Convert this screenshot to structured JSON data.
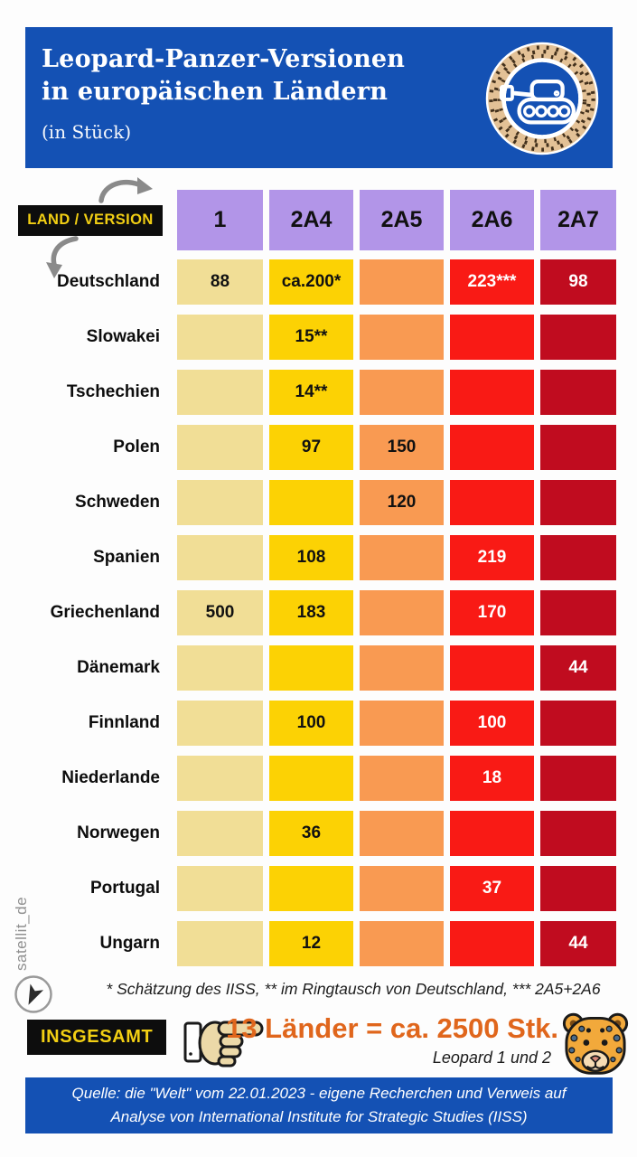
{
  "header": {
    "title_line1": "Leopard-Panzer-Versionen",
    "title_line2": "in europäischen Ländern",
    "subtitle": "(in Stück)",
    "bg_color": "#1451b4",
    "logo_icon": "leopard-tank-badge-icon"
  },
  "chart_data": {
    "type": "heatmap",
    "title": "Leopard-Panzer-Versionen in europäischen Ländern",
    "unit": "in Stück",
    "corner_label": "LAND / VERSION",
    "columns": [
      "1",
      "2A4",
      "2A5",
      "2A6",
      "2A7"
    ],
    "column_colors": [
      "#f1de96",
      "#fcd204",
      "#f99a52",
      "#f91a15",
      "#c00c1f"
    ],
    "column_text_colors": [
      "#111111",
      "#111111",
      "#111111",
      "#ffffff",
      "#ffffff"
    ],
    "header_cell_color": "#b295e8",
    "rows": [
      {
        "country": "Deutschland",
        "values": [
          "88",
          "ca.200*",
          "",
          "223***",
          "98"
        ]
      },
      {
        "country": "Slowakei",
        "values": [
          "",
          "15**",
          "",
          "",
          ""
        ]
      },
      {
        "country": "Tschechien",
        "values": [
          "",
          "14**",
          "",
          "",
          ""
        ]
      },
      {
        "country": "Polen",
        "values": [
          "",
          "97",
          "150",
          "",
          ""
        ]
      },
      {
        "country": "Schweden",
        "values": [
          "",
          "",
          "120",
          "",
          ""
        ]
      },
      {
        "country": "Spanien",
        "values": [
          "",
          "108",
          "",
          "219",
          ""
        ]
      },
      {
        "country": "Griechenland",
        "values": [
          "500",
          "183",
          "",
          "170",
          ""
        ]
      },
      {
        "country": "Dänemark",
        "values": [
          "",
          "",
          "",
          "",
          "44"
        ]
      },
      {
        "country": "Finnland",
        "values": [
          "",
          "100",
          "",
          "100",
          ""
        ]
      },
      {
        "country": "Niederlande",
        "values": [
          "",
          "",
          "",
          "18",
          ""
        ]
      },
      {
        "country": "Norwegen",
        "values": [
          "",
          "36",
          "",
          "",
          ""
        ]
      },
      {
        "country": "Portugal",
        "values": [
          "",
          "",
          "",
          "37",
          ""
        ]
      },
      {
        "country": "Ungarn",
        "values": [
          "",
          "12",
          "",
          "",
          "44"
        ]
      }
    ],
    "footnote": "* Schätzung des IISS, ** im Ringtausch von Deutschland, *** 2A5+2A6",
    "legend_position": "none",
    "grid": false
  },
  "total": {
    "label": "INSGESAMT",
    "value": "13 Länder = ca. 2500 Stk.",
    "sub": "Leopard 1 und 2",
    "accent_color": "#e0661c",
    "hand_icon": "pointing-hand-icon",
    "leopard_icon": "leopard-head-icon"
  },
  "source": {
    "line1": "Quelle:  die \"Welt\" vom 22.01.2023 - eigene Recherchen und Verweis auf",
    "line2": "Analyse von International Institute for Strategic Studies (IISS)"
  },
  "watermark": {
    "text": "satellit_de",
    "icon": "navigation-arrow-icon"
  },
  "decorations": {
    "arrow_top_icon": "curved-arrow-right-icon",
    "arrow_down_icon": "curved-arrow-down-icon",
    "label_bg": "#0d0d0d",
    "label_fg": "#f2cf13"
  }
}
